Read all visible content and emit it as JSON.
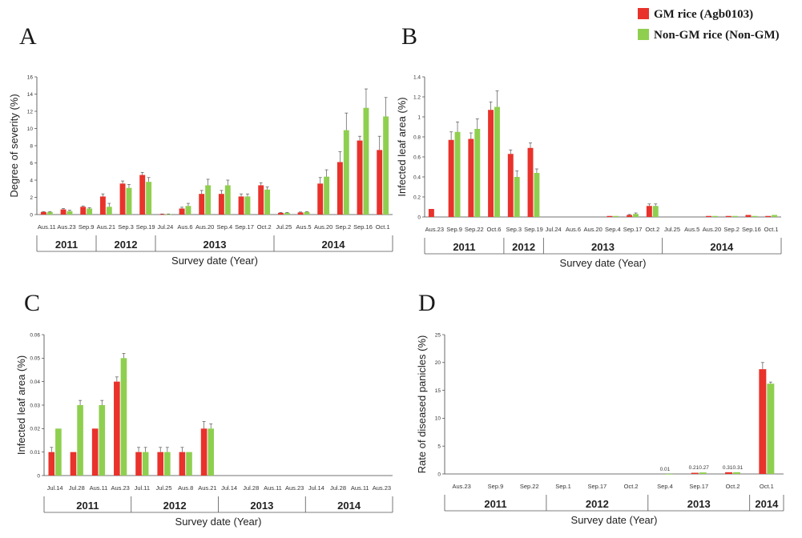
{
  "legend": {
    "entries": [
      {
        "name": "GM rice (Agb0103)",
        "color": "#e8322b"
      },
      {
        "name": "Non-GM rice (Non-GM)",
        "color": "#8fcf4f"
      }
    ]
  },
  "chart_data": [
    {
      "type": "bar",
      "panel": "A",
      "ylabel": "Degree of severity (%)",
      "xlabel": "Survey date (Year)",
      "ylim": [
        0,
        16
      ],
      "yticks": [
        "0",
        "2",
        "4",
        "6",
        "8",
        "10",
        "12",
        "14",
        "16"
      ],
      "categories": [
        "Aus.11",
        "Aus.23",
        "Sep.9",
        "Aus.21",
        "Sep.3",
        "Sep.19",
        "Jul.24",
        "Aus.6",
        "Aus.20",
        "Sep.4",
        "Sep.17",
        "Oct.2",
        "Jul.25",
        "Aus.5",
        "Aus.20",
        "Sep.2",
        "Sep.16",
        "Oct.1"
      ],
      "groups": [
        {
          "label": "2011",
          "start": 0,
          "count": 3
        },
        {
          "label": "2012",
          "start": 3,
          "count": 3
        },
        {
          "label": "2013",
          "start": 6,
          "count": 6
        },
        {
          "label": "2014",
          "start": 12,
          "count": 6
        }
      ],
      "series": [
        {
          "name": "GM rice (Agb0103)",
          "values": [
            0.3,
            0.6,
            0.9,
            2.1,
            3.6,
            4.6,
            0.05,
            0.7,
            2.4,
            2.4,
            2.1,
            3.4,
            0.2,
            0.25,
            3.6,
            6.1,
            8.6,
            7.5
          ],
          "errors": [
            0.05,
            0.1,
            0.1,
            0.3,
            0.3,
            0.3,
            0.02,
            0.15,
            0.4,
            0.4,
            0.3,
            0.3,
            0.05,
            0.05,
            0.7,
            1.2,
            0.5,
            1.6
          ]
        },
        {
          "name": "Non-GM rice (Non-GM)",
          "values": [
            0.3,
            0.4,
            0.7,
            0.9,
            3.1,
            3.8,
            0.05,
            1.0,
            3.4,
            3.4,
            2.1,
            2.9,
            0.2,
            0.3,
            4.4,
            9.8,
            12.4,
            11.4
          ],
          "errors": [
            0.05,
            0.1,
            0.1,
            0.4,
            0.4,
            0.5,
            0.02,
            0.3,
            0.7,
            0.6,
            0.3,
            0.3,
            0.05,
            0.05,
            0.8,
            2.0,
            2.2,
            2.2
          ]
        }
      ]
    },
    {
      "type": "bar",
      "panel": "B",
      "ylabel": "Infected leaf area (%)",
      "xlabel": "Survey date (Year)",
      "ylim": [
        0,
        1.4
      ],
      "yticks": [
        "0",
        "0.2",
        "0.4",
        "0.6",
        "0.8",
        "1",
        "1.2",
        "1.4"
      ],
      "categories": [
        "Aus.23",
        "Sep.9",
        "Sep.22",
        "Oct.6",
        "Sep.3",
        "Sep.19",
        "Jul.24",
        "Aus.6",
        "Aus.20",
        "Sep.4",
        "Sep.17",
        "Oct.2",
        "Jul.25",
        "Aus.5",
        "Aus.20",
        "Sep.2",
        "Sep.16",
        "Oct.1"
      ],
      "groups": [
        {
          "label": "2011",
          "start": 0,
          "count": 4
        },
        {
          "label": "2012",
          "start": 4,
          "count": 2
        },
        {
          "label": "2013",
          "start": 6,
          "count": 6
        },
        {
          "label": "2014",
          "start": 12,
          "count": 6
        }
      ],
      "series": [
        {
          "name": "GM rice (Agb0103)",
          "values": [
            0.08,
            0.77,
            0.78,
            1.07,
            0.63,
            0.69,
            0,
            0,
            0,
            0.01,
            0.02,
            0.11,
            0,
            0,
            0.01,
            0.01,
            0.02,
            0.01
          ],
          "errors": [
            0,
            0.08,
            0.06,
            0.08,
            0.04,
            0.05,
            0,
            0,
            0,
            0,
            0.005,
            0.02,
            0,
            0,
            0,
            0,
            0,
            0
          ]
        },
        {
          "name": "Non-GM rice (Non-GM)",
          "values": [
            0,
            0.85,
            0.88,
            1.1,
            0.4,
            0.44,
            0,
            0,
            0,
            0.01,
            0.03,
            0.11,
            0,
            0,
            0.01,
            0.01,
            0.01,
            0.02
          ],
          "errors": [
            0,
            0.1,
            0.1,
            0.16,
            0.06,
            0.04,
            0,
            0,
            0,
            0,
            0.01,
            0.02,
            0,
            0,
            0,
            0,
            0,
            0
          ]
        }
      ]
    },
    {
      "type": "bar",
      "panel": "C",
      "ylabel": "Infected leaf area (%)",
      "xlabel": "Survey date (Year)",
      "ylim": [
        0,
        0.06
      ],
      "yticks": [
        "0",
        "0.01",
        "0.02",
        "0.03",
        "0.04",
        "0.05",
        "0.06"
      ],
      "categories": [
        "Jul.14",
        "Jul.28",
        "Aus.11",
        "Aus.23",
        "Jul.11",
        "Jul.25",
        "Aus.8",
        "Aus.21",
        "Jul.14",
        "Jul.28",
        "Aus.11",
        "Aus.23",
        "Jul.14",
        "Jul.28",
        "Aus.11",
        "Aus.23"
      ],
      "groups": [
        {
          "label": "2011",
          "start": 0,
          "count": 4
        },
        {
          "label": "2012",
          "start": 4,
          "count": 4
        },
        {
          "label": "2013",
          "start": 8,
          "count": 4
        },
        {
          "label": "2014",
          "start": 12,
          "count": 4
        }
      ],
      "series": [
        {
          "name": "GM rice (Agb0103)",
          "values": [
            0.01,
            0.01,
            0.02,
            0.04,
            0.01,
            0.01,
            0.01,
            0.02,
            0,
            0,
            0,
            0,
            0,
            0,
            0,
            0
          ],
          "errors": [
            0.002,
            0,
            0,
            0.002,
            0.002,
            0.002,
            0.002,
            0.003,
            0,
            0,
            0,
            0,
            0,
            0,
            0,
            0
          ]
        },
        {
          "name": "Non-GM rice (Non-GM)",
          "values": [
            0.02,
            0.03,
            0.03,
            0.05,
            0.01,
            0.01,
            0.01,
            0.02,
            0,
            0,
            0,
            0,
            0,
            0,
            0,
            0
          ],
          "errors": [
            0,
            0.002,
            0.002,
            0.002,
            0.002,
            0.002,
            0,
            0.002,
            0,
            0,
            0,
            0,
            0,
            0,
            0,
            0
          ]
        }
      ]
    },
    {
      "type": "bar",
      "panel": "D",
      "ylabel": "Rate of diseased panicles (%)",
      "xlabel": "Survey date (Year)",
      "ylim": [
        0,
        25
      ],
      "yticks": [
        "0",
        "5",
        "10",
        "15",
        "20",
        "25"
      ],
      "categories": [
        "Aus.23",
        "Sep.9",
        "Sep.22",
        "Sep.1",
        "Sep.17",
        "Oct.2",
        "Sep.4",
        "Sep.17",
        "Oct.2",
        "Oct.1"
      ],
      "groups": [
        {
          "label": "2011",
          "start": 0,
          "count": 3
        },
        {
          "label": "2012",
          "start": 3,
          "count": 3
        },
        {
          "label": "2013",
          "start": 6,
          "count": 3
        },
        {
          "label": "2014",
          "start": 9,
          "count": 1
        }
      ],
      "series": [
        {
          "name": "GM rice (Agb0103)",
          "values": [
            0,
            0,
            0,
            0,
            0,
            0,
            0,
            0.21,
            0.31,
            18.8
          ],
          "errors": [
            0,
            0,
            0,
            0,
            0,
            0,
            0,
            0,
            0,
            1.2
          ]
        },
        {
          "name": "Non-GM rice (Non-GM)",
          "values": [
            0,
            0,
            0,
            0,
            0,
            0,
            0.01,
            0.27,
            0.31,
            16.2
          ],
          "errors": [
            0,
            0,
            0,
            0,
            0,
            0,
            0,
            0,
            0,
            0.3
          ]
        }
      ],
      "annotations": [
        {
          "index": 6,
          "text": "0.01"
        },
        {
          "index": 7,
          "text": "0.210.27"
        },
        {
          "index": 8,
          "text": "0.310.31"
        }
      ]
    }
  ]
}
